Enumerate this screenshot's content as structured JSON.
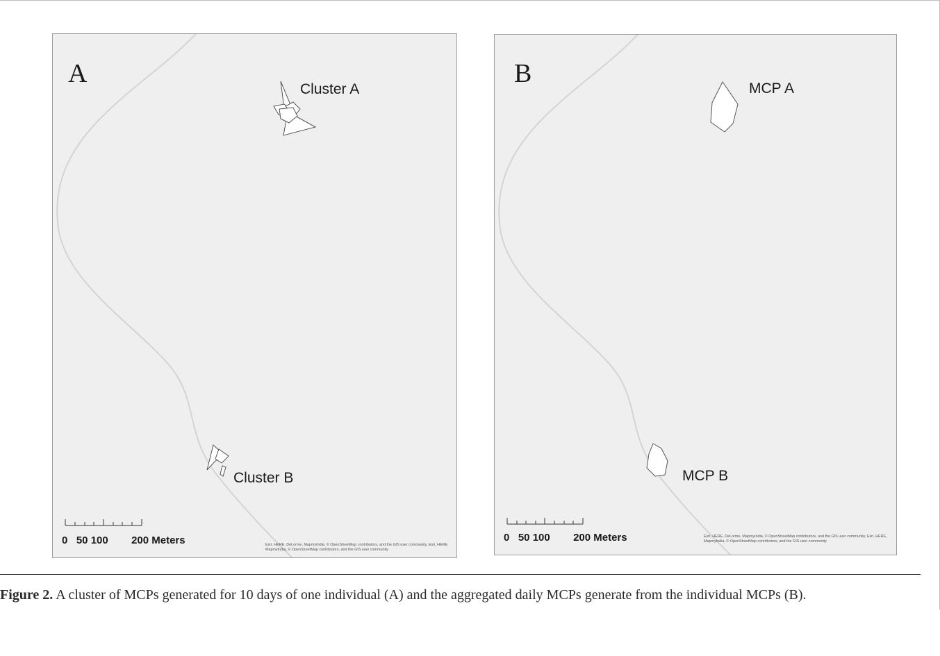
{
  "panels": [
    {
      "letter": "A",
      "labels": [
        "Cluster A",
        "Cluster B"
      ],
      "scale_text": "0   50 100        200 Meters",
      "attribution": "Esri, HERE, DeLorme, MapmyIndia, © OpenStreetMap contributors, and the GIS user community, Esri, HERE, MapmyIndia, © OpenStreetMap contributors, and the GIS user community"
    },
    {
      "letter": "B",
      "labels": [
        "MCP A",
        "MCP B"
      ],
      "scale_text": "0   50 100        200 Meters",
      "attribution": "Esri, HERE, DeLorme, MapmyIndia, © OpenStreetMap contributors, and the GIS user community, Esri, HERE, MapmyIndia, © OpenStreetMap contributors, and the GIS user community"
    }
  ],
  "caption": {
    "label": "Figure 2.",
    "text": " A cluster of MCPs generated for 10 days of one individual (A) and the aggregated daily MCPs generate from the individual MCPs (B)."
  },
  "colors": {
    "map_background": "#efefef",
    "road": "#d4d4d4",
    "polygon_fill": "#ffffff",
    "polygon_stroke": "#555555"
  }
}
